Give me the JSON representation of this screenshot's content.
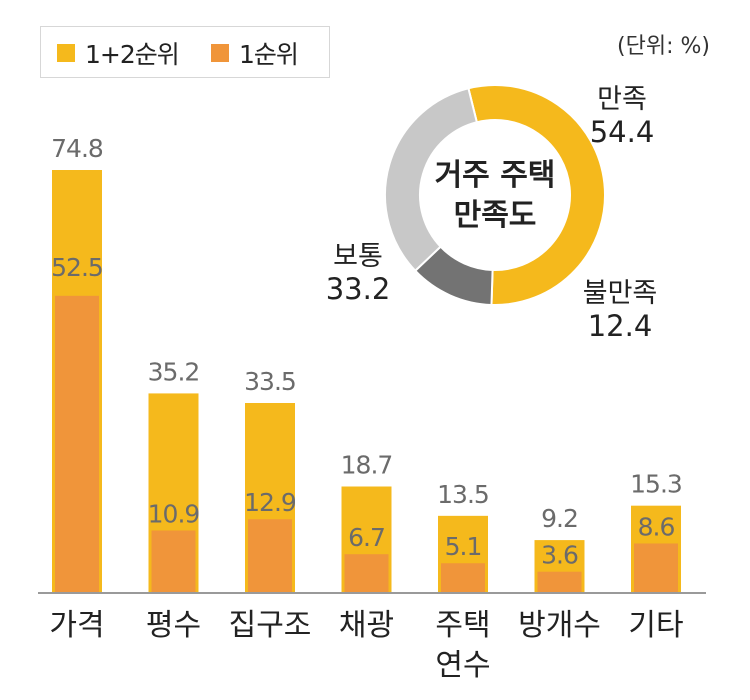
{
  "unit_label": "(단위: %)",
  "colors": {
    "series_top3": "#f5b91c",
    "series_top1": "#f0953a",
    "dissatisfied": "#737373",
    "neutral": "#c8c8c8",
    "axis": "#9a9a9a"
  },
  "chart_data": [
    {
      "type": "bar",
      "categories": [
        "가격",
        "평수",
        "집구조",
        "채광",
        "주택\n연수",
        "방개수",
        "기타"
      ],
      "series": [
        {
          "name": "1+2순위",
          "values": [
            74.8,
            35.2,
            33.5,
            18.7,
            13.5,
            9.2,
            15.3
          ]
        },
        {
          "name": "1순위",
          "values": [
            52.5,
            10.9,
            12.9,
            6.7,
            5.1,
            3.6,
            8.6
          ]
        }
      ],
      "ylim": [
        0,
        80
      ],
      "legend": "top-left",
      "grid": false
    },
    {
      "type": "pie",
      "title": "거주 주택\n만족도",
      "labels": [
        "만족",
        "불만족",
        "보통"
      ],
      "values": [
        54.4,
        12.4,
        33.2
      ],
      "donut": true
    }
  ]
}
